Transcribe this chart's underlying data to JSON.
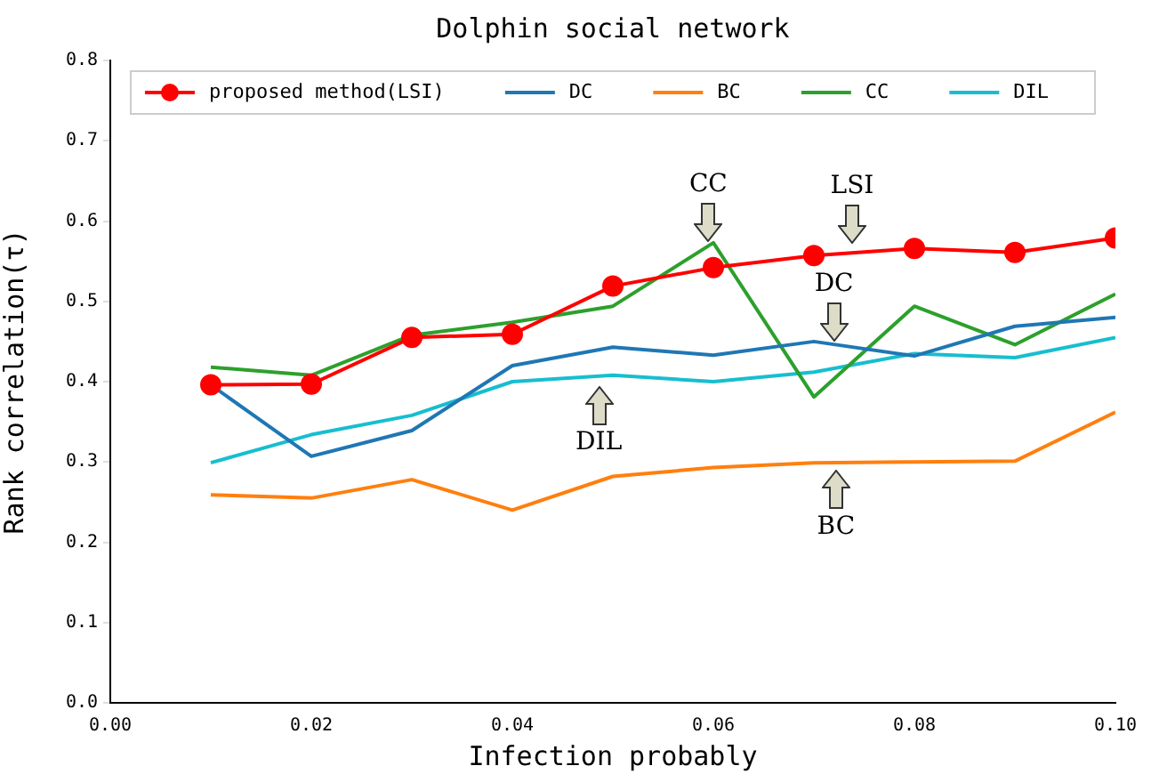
{
  "chart_data": {
    "type": "line",
    "title": "Dolphin social network",
    "xlabel": "Infection probably",
    "ylabel": "Rank correlation(τ)",
    "x": [
      0.01,
      0.02,
      0.03,
      0.04,
      0.05,
      0.06,
      0.07,
      0.08,
      0.09,
      0.1
    ],
    "series": [
      {
        "name": "proposed method(LSI)",
        "color": "#ff0000",
        "marker": "circle",
        "values": [
          0.396,
          0.397,
          0.455,
          0.459,
          0.519,
          0.542,
          0.557,
          0.566,
          0.561,
          0.579
        ]
      },
      {
        "name": "DC",
        "color": "#1f77b4",
        "values": [
          0.396,
          0.307,
          0.339,
          0.42,
          0.443,
          0.433,
          0.45,
          0.432,
          0.469,
          0.48
        ]
      },
      {
        "name": "BC",
        "color": "#ff7f0e",
        "values": [
          0.259,
          0.255,
          0.278,
          0.24,
          0.282,
          0.293,
          0.299,
          0.3,
          0.301,
          0.362
        ]
      },
      {
        "name": "CC",
        "color": "#2ca02c",
        "values": [
          0.418,
          0.408,
          0.458,
          0.474,
          0.494,
          0.573,
          0.381,
          0.494,
          0.446,
          0.509
        ]
      },
      {
        "name": "DIL",
        "color": "#17becf",
        "values": [
          0.299,
          0.334,
          0.358,
          0.4,
          0.408,
          0.4,
          0.412,
          0.435,
          0.43,
          0.455
        ]
      }
    ],
    "xlim": [
      0,
      0.1
    ],
    "xticks": [
      {
        "value": 0,
        "label": "0.00"
      },
      {
        "value": 0.02,
        "label": "0.02"
      },
      {
        "value": 0.04,
        "label": "0.04"
      },
      {
        "value": 0.06,
        "label": "0.06"
      },
      {
        "value": 0.08,
        "label": "0.08"
      },
      {
        "value": 0.1,
        "label": "0.10"
      }
    ],
    "ylim": [
      0,
      0.8
    ],
    "yticks": [
      {
        "value": 0,
        "label": "0.0"
      },
      {
        "value": 0.1,
        "label": "0.1"
      },
      {
        "value": 0.2,
        "label": "0.2"
      },
      {
        "value": 0.3,
        "label": "0.3"
      },
      {
        "value": 0.4,
        "label": "0.4"
      },
      {
        "value": 0.5,
        "label": "0.5"
      },
      {
        "value": 0.6,
        "label": "0.6"
      },
      {
        "value": 0.7,
        "label": "0.7"
      },
      {
        "value": 0.8,
        "label": "0.8"
      }
    ],
    "annotations": [
      {
        "text": "CC",
        "x": 0.0595,
        "y": 0.574
      },
      {
        "text": "LSI",
        "x": 0.0738,
        "y": 0.572
      },
      {
        "text": "DC",
        "x": 0.072,
        "y": 0.45
      },
      {
        "text": "DIL",
        "x": 0.0486,
        "y": 0.395
      },
      {
        "text": "BC",
        "x": 0.0722,
        "y": 0.29
      }
    ],
    "legend": "top",
    "grid": false,
    "line_style": "solid"
  }
}
